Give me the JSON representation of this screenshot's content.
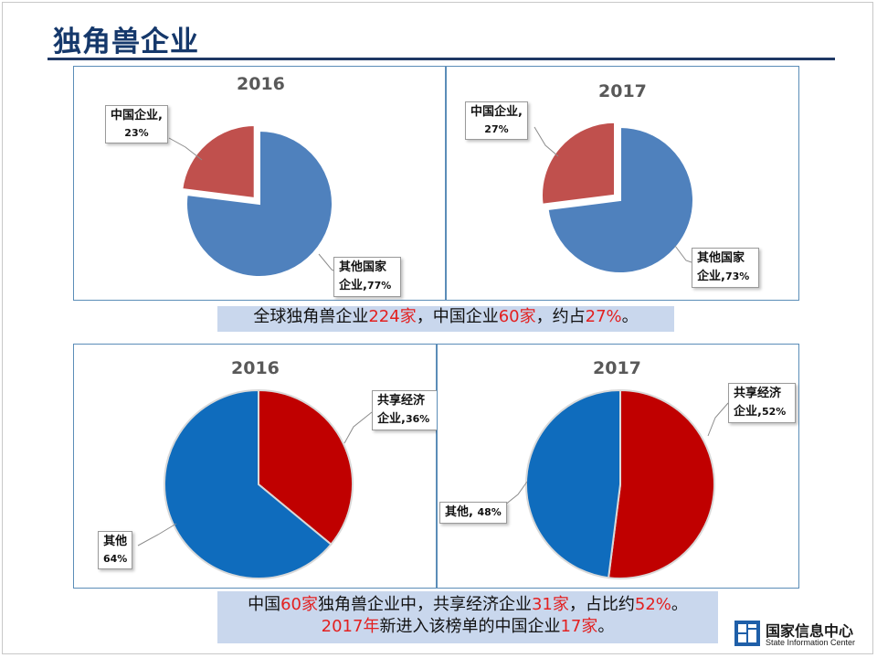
{
  "page": {
    "title": "独角兽企业"
  },
  "note_top": {
    "parts": [
      {
        "text": "全球独角兽企业",
        "red": false
      },
      {
        "text": "224家",
        "red": true
      },
      {
        "text": "，中国企业",
        "red": false
      },
      {
        "text": "60家",
        "red": true
      },
      {
        "text": "，约占",
        "red": false
      },
      {
        "text": "27%",
        "red": true
      },
      {
        "text": "。",
        "red": false
      }
    ]
  },
  "note_bottom": {
    "line1": [
      {
        "text": "中国",
        "red": false
      },
      {
        "text": "60家",
        "red": true
      },
      {
        "text": "独角兽企业中，共享经济企业",
        "red": false
      },
      {
        "text": "31家",
        "red": true
      },
      {
        "text": "，占比约",
        "red": false
      },
      {
        "text": "52%",
        "red": true
      },
      {
        "text": "。",
        "red": false
      }
    ],
    "line2": [
      {
        "text": "2017年",
        "red": true
      },
      {
        "text": "新进入该榜单的中国企业",
        "red": false
      },
      {
        "text": "17家",
        "red": true
      },
      {
        "text": "。",
        "red": false
      }
    ]
  },
  "logo": {
    "name_cn": "国家信息中心",
    "name_en": "State Information Center"
  },
  "colors": {
    "blue_top": "#4f81bd",
    "red_top": "#c0504d",
    "blue_bottom": "#0f6cbd",
    "red_bottom": "#c00000",
    "accent_red": "#e32020"
  },
  "chart_data": [
    {
      "type": "pie",
      "title": "2016",
      "slices": [
        {
          "label": "中国企业,",
          "value_label": "23%",
          "value": 23,
          "exploded": true
        },
        {
          "label": "其他国家企业,",
          "value_label": "77%",
          "value": 77,
          "exploded": false
        }
      ]
    },
    {
      "type": "pie",
      "title": "2017",
      "slices": [
        {
          "label": "中国企业,",
          "value_label": "27%",
          "value": 27,
          "exploded": true
        },
        {
          "label": "其他国家企业,",
          "value_label": "73%",
          "value": 73,
          "exploded": false
        }
      ]
    },
    {
      "type": "pie",
      "title": "2016",
      "slices": [
        {
          "label": "共享经济企业,",
          "value_label": "36%",
          "value": 36,
          "exploded": false
        },
        {
          "label": "其他",
          "value_label": "64%",
          "value": 64,
          "exploded": false
        }
      ]
    },
    {
      "type": "pie",
      "title": "2017",
      "slices": [
        {
          "label": "共享经济企业,",
          "value_label": "52%",
          "value": 52,
          "exploded": false
        },
        {
          "label": "其他,",
          "value_label": "48%",
          "value": 48,
          "exploded": false
        }
      ]
    }
  ]
}
